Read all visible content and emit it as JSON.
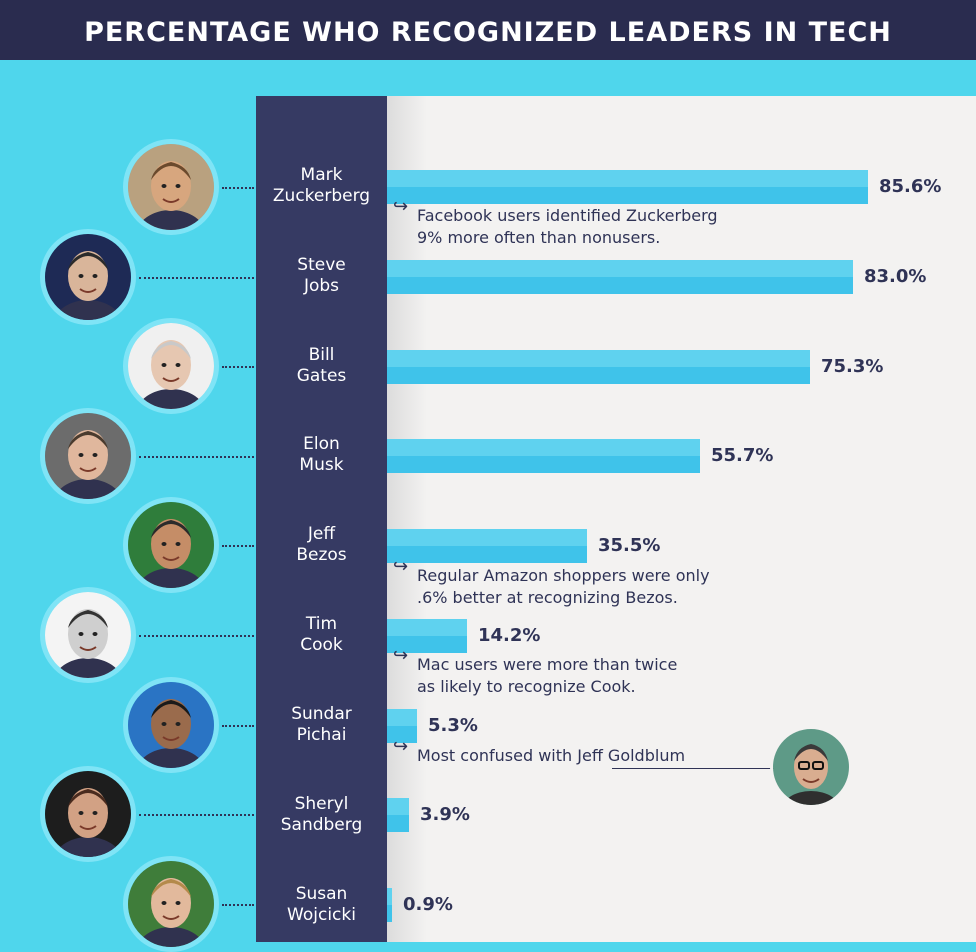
{
  "title": "PERCENTAGE WHO RECOGNIZED LEADERS IN TECH",
  "chart_data": {
    "type": "bar",
    "orientation": "horizontal",
    "title": "PERCENTAGE WHO RECOGNIZED LEADERS IN TECH",
    "categories": [
      "Mark Zuckerberg",
      "Steve Jobs",
      "Bill Gates",
      "Elon Musk",
      "Jeff Bezos",
      "Tim Cook",
      "Sundar Pichai",
      "Sheryl Sandberg",
      "Susan Wojcicki"
    ],
    "values": [
      85.6,
      83.0,
      75.3,
      55.7,
      35.5,
      14.2,
      5.3,
      3.9,
      0.9
    ],
    "value_labels": [
      "85.6%",
      "83.0%",
      "75.3%",
      "55.7%",
      "35.5%",
      "14.2%",
      "5.3%",
      "3.9%",
      "0.9%"
    ],
    "xlim": [
      0,
      100
    ],
    "grid": false,
    "bar_colors": {
      "top": "#5fd2ef",
      "bottom": "#3fc3ea"
    }
  },
  "names": [
    [
      "Mark",
      "Zuckerberg"
    ],
    [
      "Steve",
      "Jobs"
    ],
    [
      "Bill",
      "Gates"
    ],
    [
      "Elon",
      "Musk"
    ],
    [
      "Jeff",
      "Bezos"
    ],
    [
      "Tim",
      "Cook"
    ],
    [
      "Sundar",
      "Pichai"
    ],
    [
      "Sheryl",
      "Sandberg"
    ],
    [
      "Susan",
      "Wojcicki"
    ]
  ],
  "notes": {
    "zuckerberg": [
      "Facebook users identified Zuckerberg",
      "9% more often than nonusers."
    ],
    "bezos": [
      "Regular Amazon shoppers were only",
      ".6% better at recognizing Bezos."
    ],
    "cook": [
      "Mac users were more than twice",
      "as likely to recognize Cook."
    ],
    "pichai": [
      "Most confused with ",
      "Jeff Goldblum"
    ]
  },
  "icons": {
    "note_arrow": "curved-return-arrow-icon",
    "avatar": "person-portrait-icon"
  },
  "colors": {
    "header": "#2a2c4f",
    "background": "#4fd6ec",
    "name_column": "#363a63",
    "panel": "#f3f2f1",
    "text_dark": "#2f3356"
  }
}
